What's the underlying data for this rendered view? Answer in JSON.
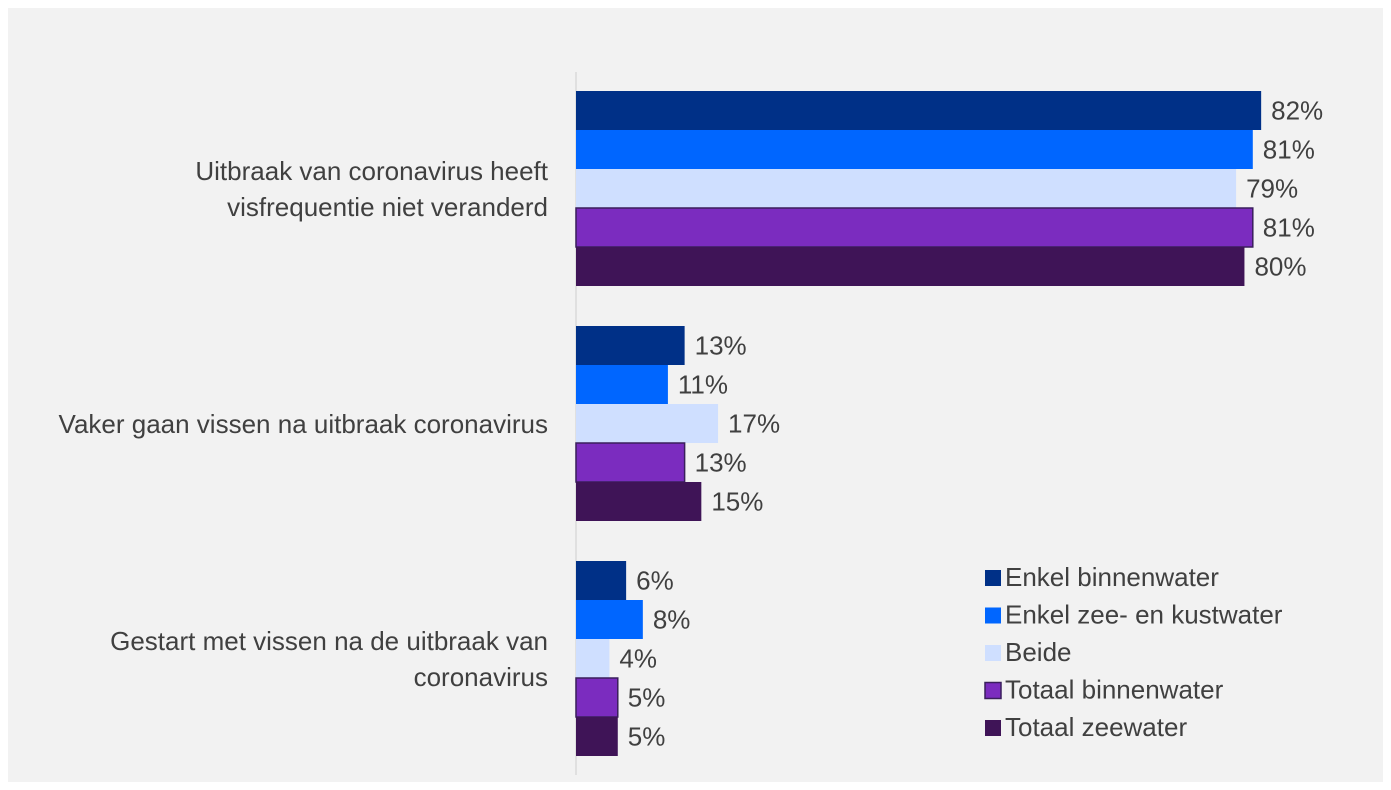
{
  "chart_data": {
    "type": "bar",
    "orientation": "horizontal",
    "categories": [
      "Uitbraak van coronavirus heeft visfrequentie niet veranderd",
      "Vaker gaan vissen na uitbraak coronavirus",
      "Gestart met vissen na de uitbraak van coronavirus"
    ],
    "series": [
      {
        "name": "Enkel binnenwater",
        "color": "#003087",
        "values": [
          82,
          13,
          6
        ],
        "value_labels": [
          "82%",
          "13%",
          "6%"
        ]
      },
      {
        "name": "Enkel zee- en kustwater",
        "color": "#0066ff",
        "values": [
          81,
          11,
          8
        ],
        "value_labels": [
          "81%",
          "11%",
          "8%"
        ]
      },
      {
        "name": "Beide",
        "color": "#cfdfff",
        "values": [
          79,
          17,
          4
        ],
        "value_labels": [
          "79%",
          "17%",
          "4%"
        ]
      },
      {
        "name": "Totaal binnenwater",
        "color": "#7b2cbf",
        "values": [
          81,
          13,
          5
        ],
        "value_labels": [
          "81%",
          "13%",
          "5%"
        ]
      },
      {
        "name": "Totaal zeewater",
        "color": "#3f1457",
        "values": [
          80,
          15,
          5
        ],
        "value_labels": [
          "80%",
          "15%",
          "5%"
        ]
      }
    ],
    "xlim": [
      0,
      90
    ],
    "legend": "lower right"
  }
}
